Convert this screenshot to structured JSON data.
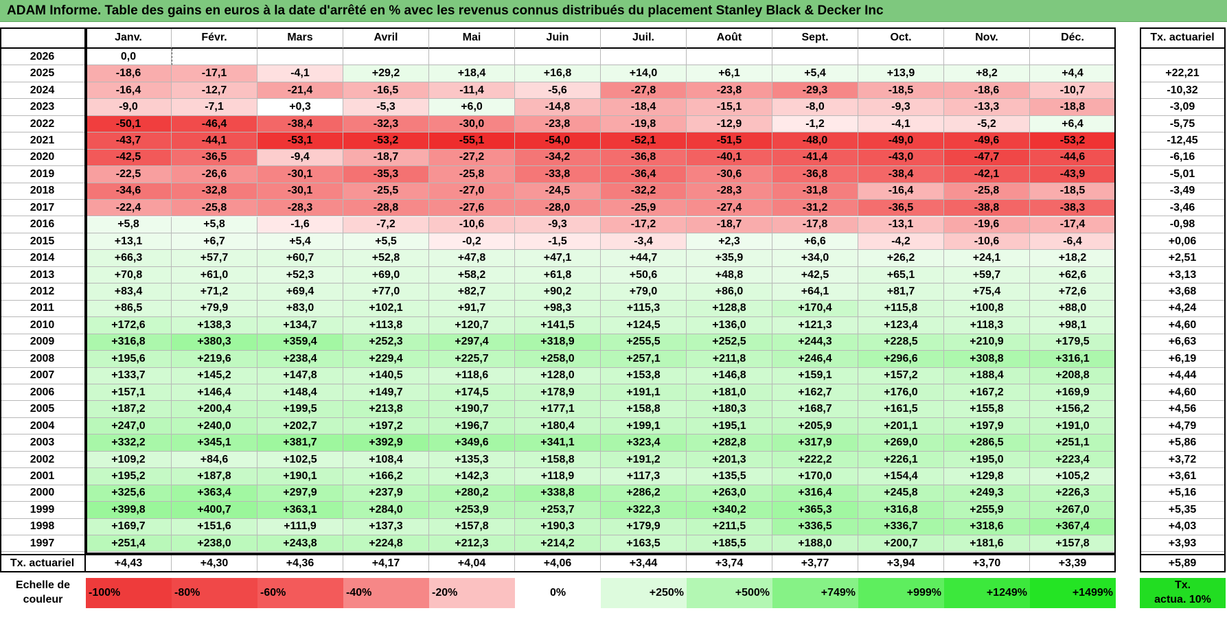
{
  "title": "ADAM Informe. Table des gains en euros à la date d'arrêté en % avec les revenus connus distribués du placement Stanley Black & Decker Inc",
  "months": [
    "Janv.",
    "Févr.",
    "Mars",
    "Avril",
    "Mai",
    "Juin",
    "Juil.",
    "Août",
    "Sept.",
    "Oct.",
    "Nov.",
    "Déc."
  ],
  "rate_header": "Tx. actuariel",
  "rows": [
    {
      "year": "2026",
      "values": [
        "0,0",
        "",
        "",
        "",
        "",
        "",
        "",
        "",
        "",
        "",
        "",
        ""
      ],
      "rate": ""
    },
    {
      "year": "2025",
      "values": [
        "-18,6",
        "-17,1",
        "-4,1",
        "+29,2",
        "+18,4",
        "+16,8",
        "+14,0",
        "+6,1",
        "+5,4",
        "+13,9",
        "+8,2",
        "+4,4"
      ],
      "rate": "+22,21"
    },
    {
      "year": "2024",
      "values": [
        "-16,4",
        "-12,7",
        "-21,4",
        "-16,5",
        "-11,4",
        "-5,6",
        "-27,8",
        "-23,8",
        "-29,3",
        "-18,5",
        "-18,6",
        "-10,7"
      ],
      "rate": "-10,32"
    },
    {
      "year": "2023",
      "values": [
        "-9,0",
        "-7,1",
        "+0,3",
        "-5,3",
        "+6,0",
        "-14,8",
        "-18,4",
        "-15,1",
        "-8,0",
        "-9,3",
        "-13,3",
        "-18,8"
      ],
      "rate": "-3,09"
    },
    {
      "year": "2022",
      "values": [
        "-50,1",
        "-46,4",
        "-38,4",
        "-32,3",
        "-30,0",
        "-23,8",
        "-19,8",
        "-12,9",
        "-1,2",
        "-4,1",
        "-5,2",
        "+6,4"
      ],
      "rate": "-5,75"
    },
    {
      "year": "2021",
      "values": [
        "-43,7",
        "-44,1",
        "-53,1",
        "-53,2",
        "-55,1",
        "-54,0",
        "-52,1",
        "-51,5",
        "-48,0",
        "-49,0",
        "-49,6",
        "-53,2"
      ],
      "rate": "-12,45"
    },
    {
      "year": "2020",
      "values": [
        "-42,5",
        "-36,5",
        "-9,4",
        "-18,7",
        "-27,2",
        "-34,2",
        "-36,8",
        "-40,1",
        "-41,4",
        "-43,0",
        "-47,7",
        "-44,6"
      ],
      "rate": "-6,16"
    },
    {
      "year": "2019",
      "values": [
        "-22,5",
        "-26,6",
        "-30,1",
        "-35,3",
        "-25,8",
        "-33,8",
        "-36,4",
        "-30,6",
        "-36,8",
        "-38,4",
        "-42,1",
        "-43,9"
      ],
      "rate": "-5,01"
    },
    {
      "year": "2018",
      "values": [
        "-34,6",
        "-32,8",
        "-30,1",
        "-25,5",
        "-27,0",
        "-24,5",
        "-32,2",
        "-28,3",
        "-31,8",
        "-16,4",
        "-25,8",
        "-18,5"
      ],
      "rate": "-3,49"
    },
    {
      "year": "2017",
      "values": [
        "-22,4",
        "-25,8",
        "-28,3",
        "-28,8",
        "-27,6",
        "-28,0",
        "-25,9",
        "-27,4",
        "-31,2",
        "-36,5",
        "-38,8",
        "-38,3"
      ],
      "rate": "-3,46"
    },
    {
      "year": "2016",
      "values": [
        "+5,8",
        "+5,8",
        "-1,6",
        "-7,2",
        "-10,6",
        "-9,3",
        "-17,2",
        "-18,7",
        "-17,8",
        "-13,1",
        "-19,6",
        "-17,4"
      ],
      "rate": "-0,98"
    },
    {
      "year": "2015",
      "values": [
        "+13,1",
        "+6,7",
        "+5,4",
        "+5,5",
        "-0,2",
        "-1,5",
        "-3,4",
        "+2,3",
        "+6,6",
        "-4,2",
        "-10,6",
        "-6,4"
      ],
      "rate": "+0,06"
    },
    {
      "year": "2014",
      "values": [
        "+66,3",
        "+57,7",
        "+60,7",
        "+52,8",
        "+47,8",
        "+47,1",
        "+44,7",
        "+35,9",
        "+34,0",
        "+26,2",
        "+24,1",
        "+18,2"
      ],
      "rate": "+2,51"
    },
    {
      "year": "2013",
      "values": [
        "+70,8",
        "+61,0",
        "+52,3",
        "+69,0",
        "+58,2",
        "+61,8",
        "+50,6",
        "+48,8",
        "+42,5",
        "+65,1",
        "+59,7",
        "+62,6"
      ],
      "rate": "+3,13"
    },
    {
      "year": "2012",
      "values": [
        "+83,4",
        "+71,2",
        "+69,4",
        "+77,0",
        "+82,7",
        "+90,2",
        "+79,0",
        "+86,0",
        "+64,1",
        "+81,7",
        "+75,4",
        "+72,6"
      ],
      "rate": "+3,68"
    },
    {
      "year": "2011",
      "values": [
        "+86,5",
        "+79,9",
        "+83,0",
        "+102,1",
        "+91,7",
        "+98,3",
        "+115,3",
        "+128,8",
        "+170,4",
        "+115,8",
        "+100,8",
        "+88,0"
      ],
      "rate": "+4,24"
    },
    {
      "year": "2010",
      "values": [
        "+172,6",
        "+138,3",
        "+134,7",
        "+113,8",
        "+120,7",
        "+141,5",
        "+124,5",
        "+136,0",
        "+121,3",
        "+123,4",
        "+118,3",
        "+98,1"
      ],
      "rate": "+4,60"
    },
    {
      "year": "2009",
      "values": [
        "+316,8",
        "+380,3",
        "+359,4",
        "+252,3",
        "+297,4",
        "+318,9",
        "+255,5",
        "+252,5",
        "+244,3",
        "+228,5",
        "+210,9",
        "+179,5"
      ],
      "rate": "+6,63"
    },
    {
      "year": "2008",
      "values": [
        "+195,6",
        "+219,6",
        "+238,4",
        "+229,4",
        "+225,7",
        "+258,0",
        "+257,1",
        "+211,8",
        "+246,4",
        "+296,6",
        "+308,8",
        "+316,1"
      ],
      "rate": "+6,19"
    },
    {
      "year": "2007",
      "values": [
        "+133,7",
        "+145,2",
        "+147,8",
        "+140,5",
        "+118,6",
        "+128,0",
        "+153,8",
        "+146,8",
        "+159,1",
        "+157,2",
        "+188,4",
        "+208,8"
      ],
      "rate": "+4,44"
    },
    {
      "year": "2006",
      "values": [
        "+157,1",
        "+146,4",
        "+148,4",
        "+149,7",
        "+174,5",
        "+178,9",
        "+191,1",
        "+181,0",
        "+162,7",
        "+176,0",
        "+167,2",
        "+169,9"
      ],
      "rate": "+4,60"
    },
    {
      "year": "2005",
      "values": [
        "+187,2",
        "+200,4",
        "+199,5",
        "+213,8",
        "+190,7",
        "+177,1",
        "+158,8",
        "+180,3",
        "+168,7",
        "+161,5",
        "+155,8",
        "+156,2"
      ],
      "rate": "+4,56"
    },
    {
      "year": "2004",
      "values": [
        "+247,0",
        "+240,0",
        "+202,7",
        "+197,2",
        "+196,7",
        "+180,4",
        "+199,1",
        "+195,1",
        "+205,9",
        "+201,1",
        "+197,9",
        "+191,0"
      ],
      "rate": "+4,79"
    },
    {
      "year": "2003",
      "values": [
        "+332,2",
        "+345,1",
        "+381,7",
        "+392,9",
        "+349,6",
        "+341,1",
        "+323,4",
        "+282,8",
        "+317,9",
        "+269,0",
        "+286,5",
        "+251,1"
      ],
      "rate": "+5,86"
    },
    {
      "year": "2002",
      "values": [
        "+109,2",
        "+84,6",
        "+102,5",
        "+108,4",
        "+135,3",
        "+158,8",
        "+191,2",
        "+201,3",
        "+222,2",
        "+226,1",
        "+195,0",
        "+223,4"
      ],
      "rate": "+3,72"
    },
    {
      "year": "2001",
      "values": [
        "+195,2",
        "+187,8",
        "+190,1",
        "+166,2",
        "+142,3",
        "+118,9",
        "+117,3",
        "+135,5",
        "+170,0",
        "+154,4",
        "+129,8",
        "+105,2"
      ],
      "rate": "+3,61"
    },
    {
      "year": "2000",
      "values": [
        "+325,6",
        "+363,4",
        "+297,9",
        "+237,9",
        "+280,2",
        "+338,8",
        "+286,2",
        "+263,0",
        "+316,4",
        "+245,8",
        "+249,3",
        "+226,3"
      ],
      "rate": "+5,16"
    },
    {
      "year": "1999",
      "values": [
        "+399,8",
        "+400,7",
        "+363,1",
        "+284,0",
        "+253,9",
        "+253,7",
        "+322,3",
        "+340,2",
        "+365,3",
        "+316,8",
        "+255,9",
        "+267,0"
      ],
      "rate": "+5,35"
    },
    {
      "year": "1998",
      "values": [
        "+169,7",
        "+151,6",
        "+111,9",
        "+137,3",
        "+157,8",
        "+190,3",
        "+179,9",
        "+211,5",
        "+336,5",
        "+336,7",
        "+318,6",
        "+367,4"
      ],
      "rate": "+4,03"
    },
    {
      "year": "1997",
      "values": [
        "+251,4",
        "+238,0",
        "+243,8",
        "+224,8",
        "+212,3",
        "+214,2",
        "+163,5",
        "+185,5",
        "+188,0",
        "+200,7",
        "+181,6",
        "+157,8"
      ],
      "rate": "+3,93"
    }
  ],
  "footer_row": {
    "label": "Tx. actuariel",
    "values": [
      "+4,43",
      "+4,30",
      "+4,36",
      "+4,17",
      "+4,04",
      "+4,06",
      "+3,44",
      "+3,74",
      "+3,77",
      "+3,94",
      "+3,70",
      "+3,39"
    ],
    "rate": "+5,89"
  },
  "scale": {
    "label_line1": "Echelle de",
    "label_line2": "couleur",
    "items": [
      {
        "text": "-100%",
        "color": "#ee3b3b",
        "align": "left"
      },
      {
        "text": "-80%",
        "color": "#f04848",
        "align": "left"
      },
      {
        "text": "-60%",
        "color": "#f35a5a",
        "align": "left"
      },
      {
        "text": "-40%",
        "color": "#f68787",
        "align": "left"
      },
      {
        "text": "-20%",
        "color": "#fbc1c1",
        "align": "left"
      },
      {
        "text": "0%",
        "color": "#ffffff",
        "align": "center"
      },
      {
        "text": "+250%",
        "color": "#ddfbdd",
        "align": "right"
      },
      {
        "text": "+500%",
        "color": "#b3f7b3",
        "align": "right"
      },
      {
        "text": "+749%",
        "color": "#86f286",
        "align": "right"
      },
      {
        "text": "+999%",
        "color": "#5eee5e",
        "align": "right"
      },
      {
        "text": "+1249%",
        "color": "#3ce83c",
        "align": "right"
      },
      {
        "text": "+1499%",
        "color": "#24e424",
        "align": "right"
      }
    ],
    "rate_line1": "Tx.",
    "rate_line2": "actua. 10%",
    "rate_color": "#22dd22"
  },
  "colors": {
    "title_bg": "#7ec87e",
    "negative_strong": "#ee3b3b",
    "neutral": "#ffffff",
    "positive_light": "#eafbea",
    "positive_strong": "#a8f2a8"
  }
}
